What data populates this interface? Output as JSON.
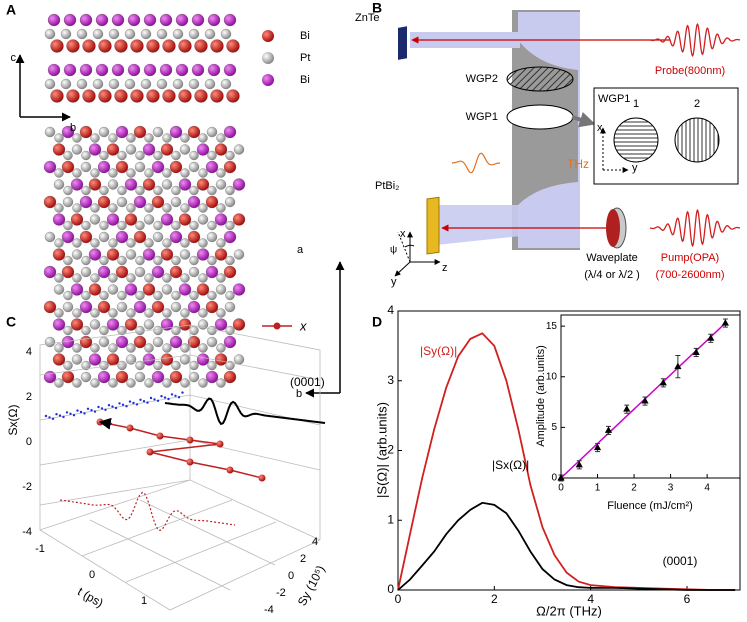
{
  "panel_labels": [
    "A",
    "B",
    "C",
    "D"
  ],
  "panel_a": {
    "legend": [
      "Bi",
      "Pt",
      "Bi"
    ],
    "axis_top": [
      "c",
      "b"
    ],
    "axis_bottom": [
      "a",
      "b"
    ]
  },
  "panel_b": {
    "znte": "ZnTe",
    "probe": "Probe(800nm)",
    "wgp2": "WGP2",
    "wgp1": "WGP1",
    "thz": "THz",
    "sample": "PtBi₂",
    "axes": [
      "x",
      "ψ",
      "y",
      "z"
    ],
    "waveplate": "Waveplate",
    "waveplate_type": "(λ/4 or λ/2 )",
    "pump": "Pump(OPA)",
    "pump_range": "(700-2600nm)",
    "inset": {
      "title": "WGP1",
      "positions": [
        "1",
        "2"
      ],
      "axes": [
        "x",
        "y"
      ]
    }
  },
  "panel_c": {
    "legend": "x",
    "annotation": "(0001)",
    "z_label": "Sx(Ω)",
    "t_label": "t (ps)",
    "y_label": "Sy (10⁵)",
    "z_ticks": [
      4,
      2,
      0,
      -2,
      -4
    ],
    "t_ticks": [
      -1,
      0,
      1
    ],
    "y_ticks": [
      4,
      2,
      0,
      -2,
      -4
    ]
  },
  "chart_data": [
    {
      "type": "line",
      "xlabel": "Ω/2π (THz)",
      "ylabel": "|S(Ω)| (arb.units)",
      "annotation": "(0001)",
      "x": [
        0,
        0.25,
        0.5,
        0.75,
        1,
        1.25,
        1.5,
        1.75,
        2,
        2.25,
        2.5,
        2.75,
        3,
        3.25,
        3.5,
        3.75,
        4,
        4.5,
        5,
        5.5,
        6,
        6.5,
        7
      ],
      "series": [
        {
          "name": "|Sy(Ω)|",
          "color": "#d02020",
          "values": [
            0,
            0.8,
            1.6,
            2.3,
            2.9,
            3.35,
            3.6,
            3.68,
            3.5,
            3.0,
            2.3,
            1.5,
            0.9,
            0.5,
            0.25,
            0.12,
            0.07,
            0.04,
            0.03,
            0.02,
            0.01,
            0,
            0
          ]
        },
        {
          "name": "|Sx(Ω)|",
          "color": "#000000",
          "values": [
            0,
            0.15,
            0.35,
            0.55,
            0.8,
            1.0,
            1.15,
            1.25,
            1.22,
            1.1,
            0.85,
            0.55,
            0.3,
            0.15,
            0.07,
            0.04,
            0.03,
            0.03,
            0.02,
            0.01,
            0,
            0,
            0
          ]
        }
      ],
      "xlim": [
        0,
        7.1
      ],
      "xticks": [
        0,
        2,
        4,
        6
      ],
      "ylim": [
        0,
        4
      ],
      "yticks": [
        0,
        1,
        2,
        3,
        4
      ]
    },
    {
      "type": "scatter",
      "xlabel": "Fluence (mJ/cm²)",
      "ylabel": "Amplitude (arb.units)",
      "x": [
        0,
        0.5,
        1,
        1.3,
        1.8,
        2.3,
        2.8,
        3.2,
        3.7,
        4.1,
        4.5
      ],
      "values": [
        0,
        1.3,
        3,
        4.7,
        6.8,
        7.6,
        9.4,
        11,
        12.4,
        13.8,
        15.3
      ],
      "errors": [
        0.3,
        0.4,
        0.4,
        0.4,
        0.4,
        0.4,
        0.4,
        1.1,
        0.4,
        0.4,
        0.4
      ],
      "color": "#000000",
      "fit": {
        "x": [
          0,
          4.5
        ],
        "values": [
          0,
          15.3
        ],
        "color": "#cc00cc"
      },
      "xlim": [
        0,
        4.9
      ],
      "xticks": [
        0,
        1,
        2,
        3,
        4
      ],
      "ylim": [
        0,
        16.1
      ],
      "yticks": [
        0,
        5,
        10,
        15
      ]
    }
  ]
}
